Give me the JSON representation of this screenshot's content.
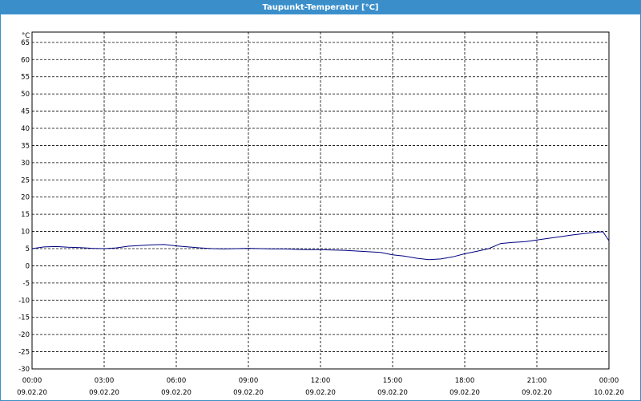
{
  "window": {
    "title": "Taupunkt-Temperatur [°C]"
  },
  "chart_data": {
    "type": "line",
    "title": "Taupunkt-Temperatur [°C]",
    "ylabel": "°C",
    "xlabel": "",
    "ylim": [
      -30,
      68
    ],
    "y_ticks": [
      65,
      60,
      55,
      50,
      45,
      40,
      35,
      30,
      25,
      20,
      15,
      10,
      5,
      0,
      -5,
      -10,
      -15,
      -20,
      -25,
      -30
    ],
    "x_ticks": [
      {
        "time": "00:00",
        "date": "09.02.20"
      },
      {
        "time": "03:00",
        "date": "09.02.20"
      },
      {
        "time": "06:00",
        "date": "09.02.20"
      },
      {
        "time": "09:00",
        "date": "09.02.20"
      },
      {
        "time": "12:00",
        "date": "09.02.20"
      },
      {
        "time": "15:00",
        "date": "09.02.20"
      },
      {
        "time": "18:00",
        "date": "09.02.20"
      },
      {
        "time": "21:00",
        "date": "09.02.20"
      },
      {
        "time": "00:00",
        "date": "10.02.20"
      }
    ],
    "grid": true,
    "series": [
      {
        "color": "#000080",
        "x": [
          "09.02.20 00:00",
          "09.02.20 00:30",
          "09.02.20 01:00",
          "09.02.20 01:30",
          "09.02.20 02:00",
          "09.02.20 02:30",
          "09.02.20 03:00",
          "09.02.20 03:30",
          "09.02.20 04:00",
          "09.02.20 04:30",
          "09.02.20 05:00",
          "09.02.20 05:30",
          "09.02.20 06:00",
          "09.02.20 06:30",
          "09.02.20 07:00",
          "09.02.20 07:30",
          "09.02.20 08:00",
          "09.02.20 08:30",
          "09.02.20 09:00",
          "09.02.20 09:30",
          "09.02.20 10:00",
          "09.02.20 10:30",
          "09.02.20 11:00",
          "09.02.20 11:30",
          "09.02.20 12:00",
          "09.02.20 12:30",
          "09.02.20 13:00",
          "09.02.20 13:30",
          "09.02.20 14:00",
          "09.02.20 14:30",
          "09.02.20 15:00",
          "09.02.20 15:30",
          "09.02.20 16:00",
          "09.02.20 16:30",
          "09.02.20 17:00",
          "09.02.20 17:30",
          "09.02.20 18:00",
          "09.02.20 18:30",
          "09.02.20 19:00",
          "09.02.20 19:30",
          "09.02.20 20:00",
          "09.02.20 20:30",
          "09.02.20 21:00",
          "09.02.20 21:30",
          "09.02.20 22:00",
          "09.02.20 22:30",
          "09.02.20 23:00",
          "09.02.20 23:30",
          "09.02.20 23:45",
          "10.02.20 00:00"
        ],
        "values": [
          5.0,
          5.5,
          5.6,
          5.4,
          5.3,
          5.1,
          5.0,
          5.2,
          5.7,
          5.9,
          6.1,
          6.2,
          5.8,
          5.5,
          5.2,
          5.0,
          4.9,
          5.0,
          5.1,
          5.0,
          4.9,
          4.9,
          4.8,
          4.7,
          4.7,
          4.6,
          4.5,
          4.3,
          4.1,
          3.9,
          3.2,
          2.8,
          2.2,
          1.8,
          2.0,
          2.6,
          3.5,
          4.2,
          5.0,
          6.5,
          6.8,
          7.0,
          7.5,
          8.0,
          8.5,
          9.0,
          9.4,
          9.8,
          9.9,
          7.3
        ]
      }
    ]
  }
}
